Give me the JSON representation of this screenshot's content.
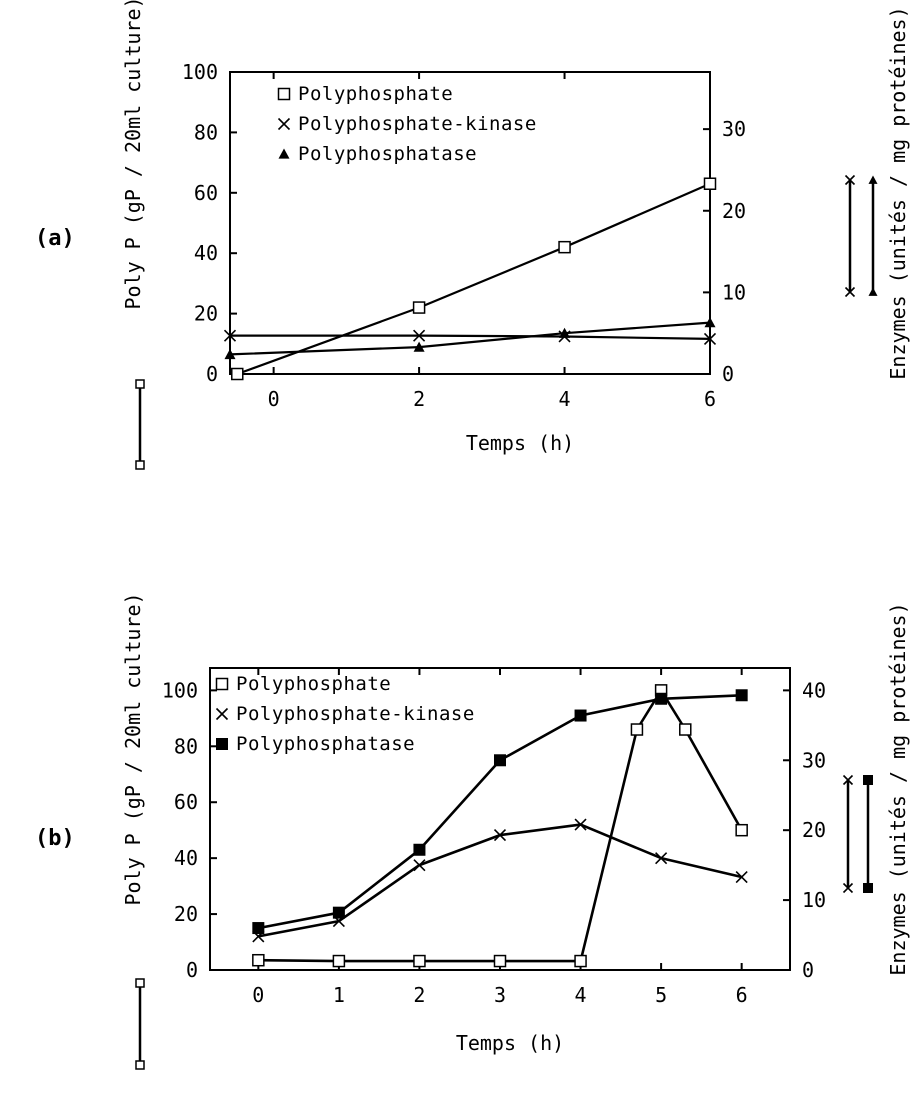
{
  "chart_data": [
    {
      "panel_label": "(a)",
      "type": "line",
      "xlabel": "Temps (h)",
      "ylabel": "Poly P (gP / 20ml culture)",
      "y2label": "Enzymes (unités / mg protéines)",
      "xlim": [
        -0.6,
        6
      ],
      "ylim": [
        0,
        100
      ],
      "y2lim": [
        0,
        37
      ],
      "xticks": [
        "0",
        "2",
        "4",
        "6"
      ],
      "xtick_values": [
        0,
        2,
        4,
        6
      ],
      "yticks": [
        "0",
        "20",
        "40",
        "60",
        "80",
        "100"
      ],
      "ytick_values": [
        0,
        20,
        40,
        60,
        80,
        100
      ],
      "y2ticks": [
        "0",
        "10",
        "20",
        "30"
      ],
      "y2tick_values": [
        0,
        10,
        20,
        30
      ],
      "legend_position": "top-center",
      "series": [
        {
          "name": "Polyphosphate",
          "marker": "open-square",
          "axis": "left",
          "x": [
            -0.5,
            2,
            4,
            6
          ],
          "y": [
            0,
            22,
            42,
            63
          ]
        },
        {
          "name": "Polyphosphate-kinase",
          "marker": "cross",
          "axis": "right",
          "x": [
            -0.6,
            2,
            4,
            6
          ],
          "y": [
            4.7,
            4.7,
            4.6,
            4.3
          ]
        },
        {
          "name": "Polyphosphatase",
          "marker": "filled-triangle",
          "axis": "right",
          "x": [
            -0.6,
            2,
            4,
            6
          ],
          "y": [
            2.4,
            3.3,
            5,
            6.3
          ]
        }
      ]
    },
    {
      "panel_label": "(b)",
      "type": "line",
      "xlabel": "Temps (h)",
      "ylabel": "Poly P (gP / 20ml culture)",
      "y2label": "Enzymes (unités / mg protéines)",
      "xlim": [
        -0.6,
        6.6
      ],
      "ylim": [
        0,
        108
      ],
      "y2lim": [
        0,
        43.2
      ],
      "xticks": [
        "0",
        "1",
        "2",
        "3",
        "4",
        "5",
        "6"
      ],
      "xtick_values": [
        0,
        1,
        2,
        3,
        4,
        5,
        6
      ],
      "yticks": [
        "0",
        "20",
        "40",
        "60",
        "80",
        "100"
      ],
      "ytick_values": [
        0,
        20,
        40,
        60,
        80,
        100
      ],
      "y2ticks": [
        "0",
        "10",
        "20",
        "30",
        "40"
      ],
      "y2tick_values": [
        0,
        10,
        20,
        30,
        40
      ],
      "legend_position": "top-left",
      "series": [
        {
          "name": "Polyphosphate",
          "marker": "open-square",
          "axis": "left",
          "x": [
            0,
            1,
            2,
            3,
            4,
            4.7,
            5,
            5.3,
            6
          ],
          "y": [
            3.5,
            3.2,
            3.2,
            3.2,
            3.2,
            86,
            100,
            86,
            50
          ]
        },
        {
          "name": "Polyphosphate-kinase",
          "marker": "cross",
          "axis": "right",
          "x": [
            0,
            1,
            2,
            3,
            4,
            5,
            6
          ],
          "y": [
            4.8,
            7,
            15,
            19.3,
            20.8,
            16,
            13.3
          ]
        },
        {
          "name": "Polyphosphatase",
          "marker": "filled-square",
          "axis": "right",
          "x": [
            0,
            1,
            2,
            3,
            4,
            5,
            6
          ],
          "y": [
            6,
            8.2,
            17.2,
            30,
            36.4,
            38.8,
            39.3
          ]
        }
      ]
    }
  ]
}
